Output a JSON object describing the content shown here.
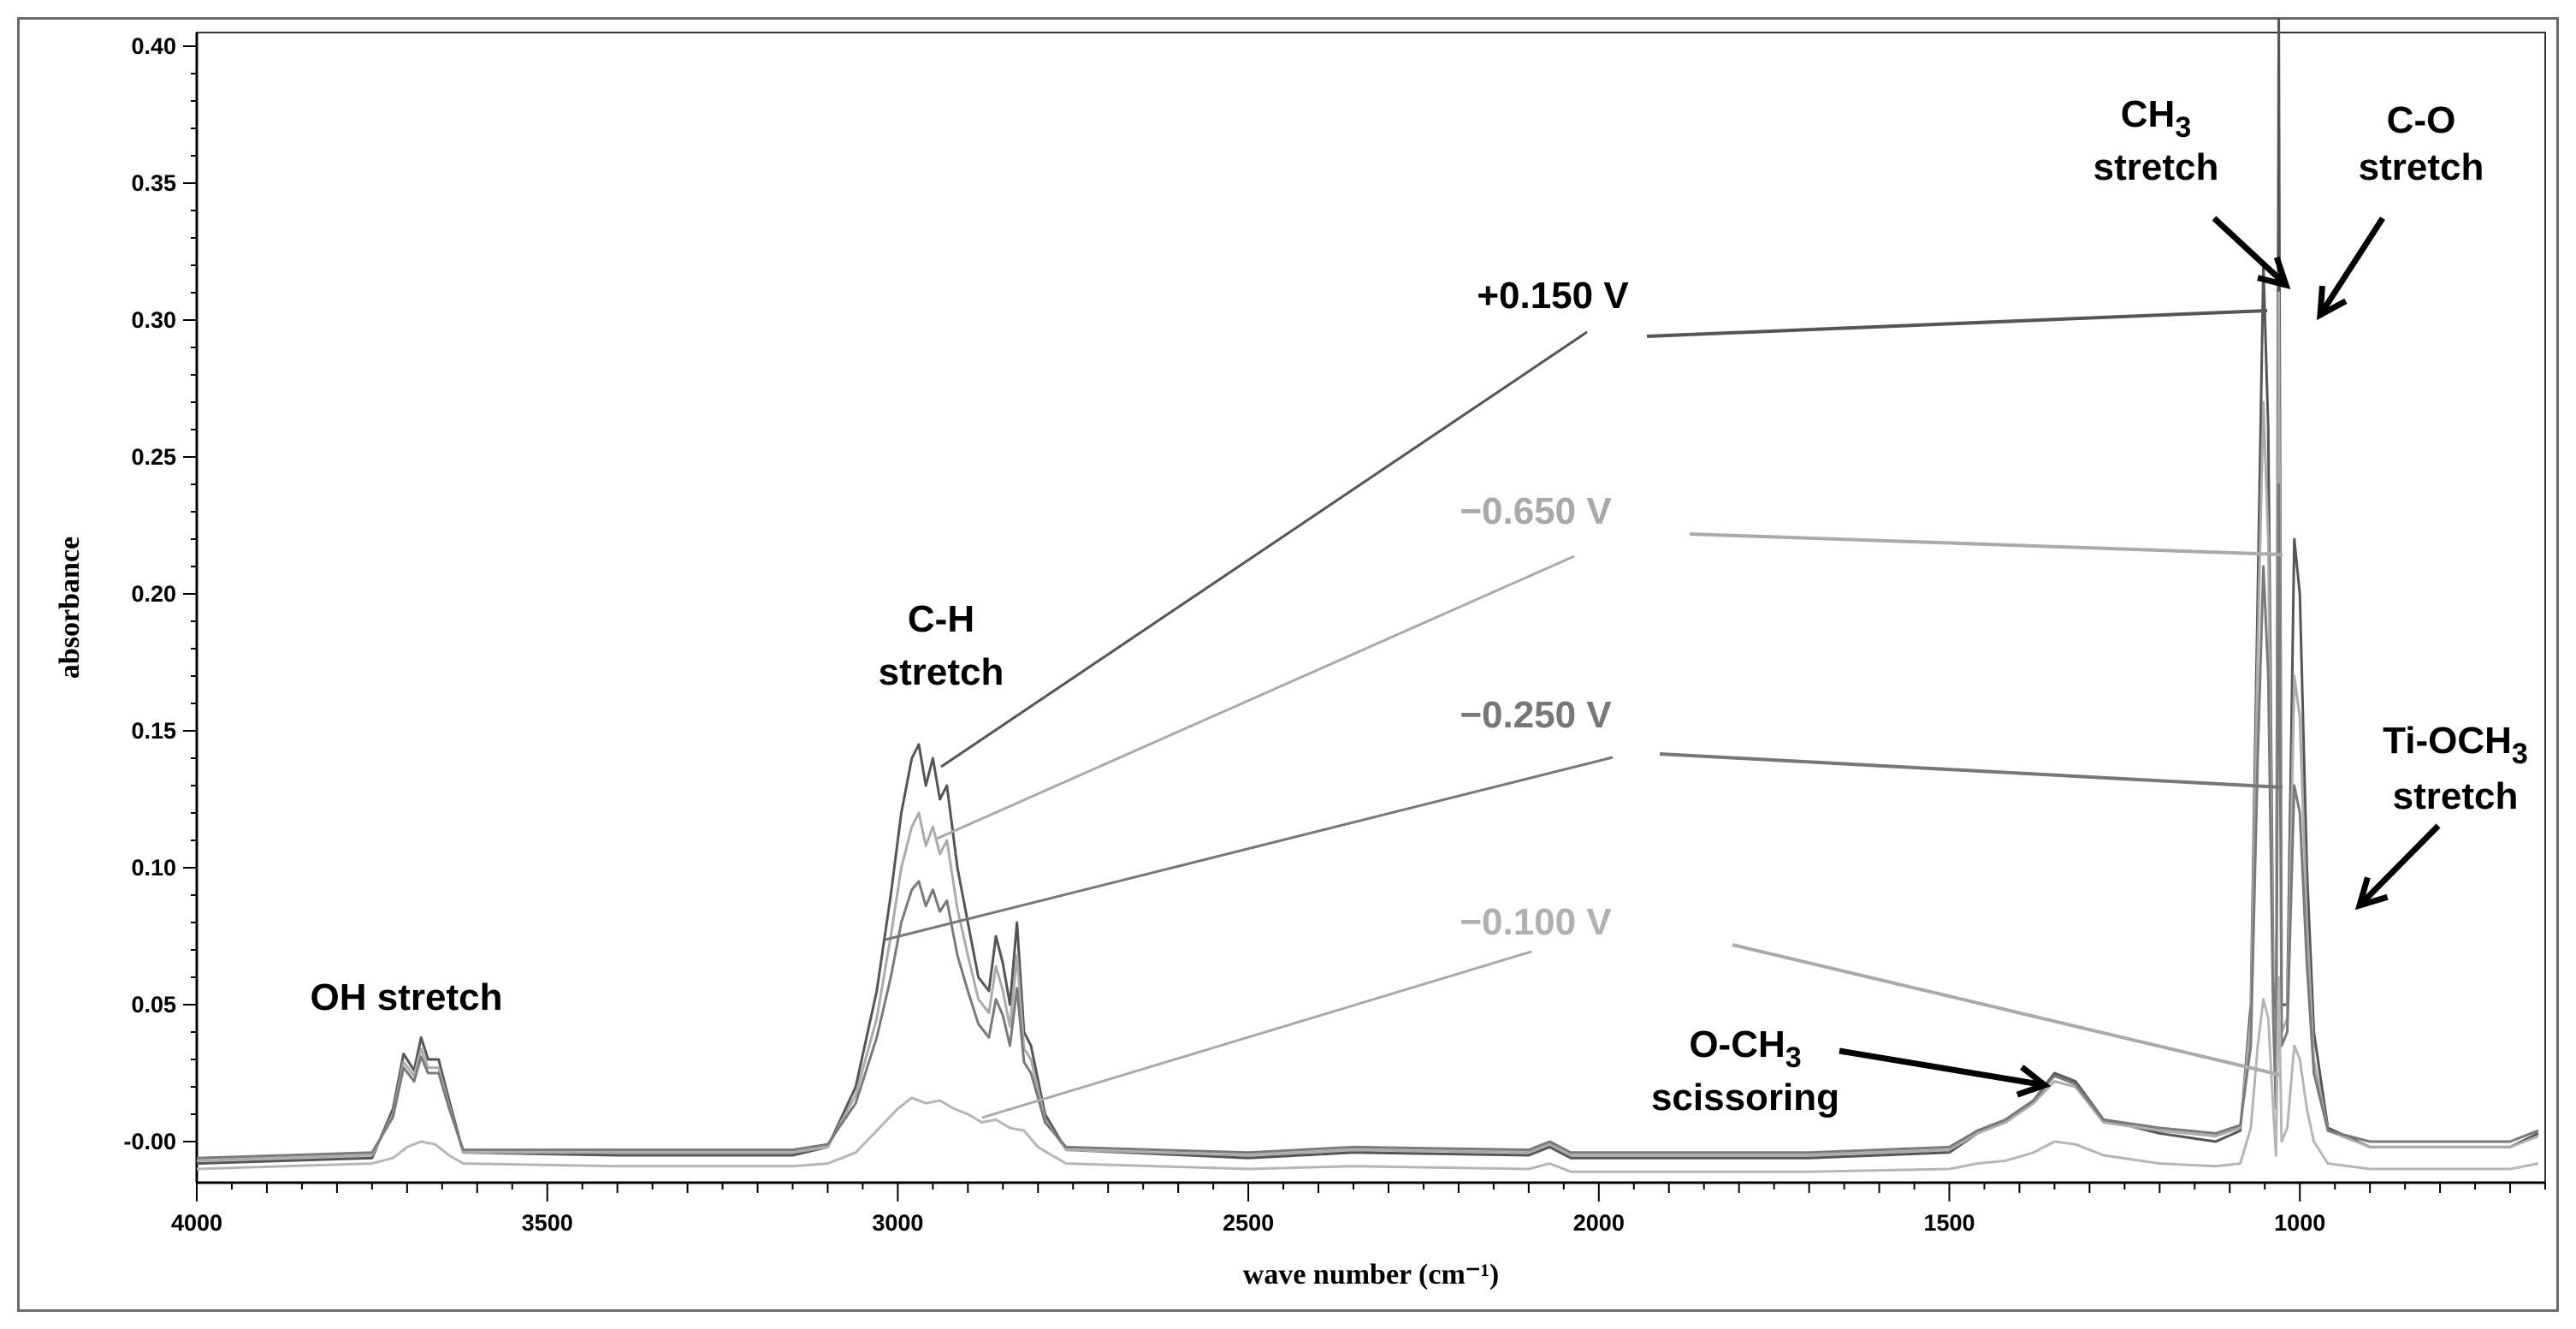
{
  "chart_data": {
    "type": "line",
    "xlabel": "wave number",
    "xlabel_unit": "(cm⁻¹)",
    "ylabel": "absorbance",
    "xlim": [
      4000,
      650
    ],
    "ylim": [
      -0.015,
      0.405
    ],
    "x_reversed": true,
    "x_ticks": [
      {
        "value": 4000,
        "label": "4000"
      },
      {
        "value": 3500,
        "label": "3500"
      },
      {
        "value": 3000,
        "label": "3000"
      },
      {
        "value": 2500,
        "label": "2500"
      },
      {
        "value": 2000,
        "label": "2000"
      },
      {
        "value": 1500,
        "label": "1500"
      },
      {
        "value": 1000,
        "label": "1000"
      }
    ],
    "y_ticks": [
      {
        "value": 0.0,
        "label": "-0.00"
      },
      {
        "value": 0.05,
        "label": "0.05"
      },
      {
        "value": 0.1,
        "label": "0.10"
      },
      {
        "value": 0.15,
        "label": "0.15"
      },
      {
        "value": 0.2,
        "label": "0.20"
      },
      {
        "value": 0.25,
        "label": "0.25"
      },
      {
        "value": 0.3,
        "label": "0.30"
      },
      {
        "value": 0.35,
        "label": "0.35"
      },
      {
        "value": 0.4,
        "label": "0.40"
      }
    ],
    "grid": false,
    "series": [
      {
        "name": "+0.150 V",
        "color": "#555555",
        "points": [
          [
            4000,
            -0.008
          ],
          [
            3750,
            -0.006
          ],
          [
            3720,
            0.012
          ],
          [
            3705,
            0.032
          ],
          [
            3690,
            0.026
          ],
          [
            3680,
            0.038
          ],
          [
            3670,
            0.03
          ],
          [
            3655,
            0.03
          ],
          [
            3640,
            0.015
          ],
          [
            3620,
            -0.004
          ],
          [
            3400,
            -0.005
          ],
          [
            3150,
            -0.005
          ],
          [
            3100,
            -0.002
          ],
          [
            3060,
            0.02
          ],
          [
            3030,
            0.055
          ],
          [
            3010,
            0.09
          ],
          [
            2995,
            0.12
          ],
          [
            2980,
            0.14
          ],
          [
            2970,
            0.145
          ],
          [
            2960,
            0.13
          ],
          [
            2950,
            0.14
          ],
          [
            2940,
            0.125
          ],
          [
            2930,
            0.13
          ],
          [
            2915,
            0.1
          ],
          [
            2900,
            0.08
          ],
          [
            2885,
            0.06
          ],
          [
            2870,
            0.055
          ],
          [
            2860,
            0.075
          ],
          [
            2850,
            0.065
          ],
          [
            2840,
            0.05
          ],
          [
            2830,
            0.08
          ],
          [
            2820,
            0.04
          ],
          [
            2810,
            0.035
          ],
          [
            2790,
            0.01
          ],
          [
            2760,
            -0.003
          ],
          [
            2500,
            -0.006
          ],
          [
            2350,
            -0.004
          ],
          [
            2100,
            -0.005
          ],
          [
            2070,
            -0.002
          ],
          [
            2040,
            -0.006
          ],
          [
            1700,
            -0.006
          ],
          [
            1500,
            -0.004
          ],
          [
            1460,
            0.003
          ],
          [
            1420,
            0.008
          ],
          [
            1380,
            0.015
          ],
          [
            1350,
            0.025
          ],
          [
            1320,
            0.022
          ],
          [
            1280,
            0.008
          ],
          [
            1200,
            0.003
          ],
          [
            1120,
            0.0
          ],
          [
            1085,
            0.004
          ],
          [
            1070,
            0.05
          ],
          [
            1060,
            0.2
          ],
          [
            1052,
            0.32
          ],
          [
            1045,
            0.26
          ],
          [
            1038,
            0.06
          ],
          [
            1034,
            0.015
          ],
          [
            1030,
            0.41
          ],
          [
            1026,
            0.05
          ],
          [
            1018,
            0.05
          ],
          [
            1008,
            0.22
          ],
          [
            1000,
            0.2
          ],
          [
            990,
            0.1
          ],
          [
            980,
            0.04
          ],
          [
            960,
            0.005
          ],
          [
            900,
            -0.002
          ],
          [
            700,
            -0.002
          ],
          [
            660,
            0.003
          ]
        ]
      },
      {
        "name": "−0.650 V",
        "color": "#ababab",
        "points": [
          [
            4000,
            -0.007
          ],
          [
            3750,
            -0.005
          ],
          [
            3720,
            0.01
          ],
          [
            3705,
            0.029
          ],
          [
            3690,
            0.024
          ],
          [
            3680,
            0.034
          ],
          [
            3670,
            0.027
          ],
          [
            3655,
            0.027
          ],
          [
            3640,
            0.013
          ],
          [
            3620,
            -0.004
          ],
          [
            3400,
            -0.004
          ],
          [
            3150,
            -0.004
          ],
          [
            3100,
            -0.002
          ],
          [
            3060,
            0.017
          ],
          [
            3030,
            0.045
          ],
          [
            3010,
            0.075
          ],
          [
            2995,
            0.1
          ],
          [
            2980,
            0.115
          ],
          [
            2970,
            0.12
          ],
          [
            2960,
            0.108
          ],
          [
            2950,
            0.115
          ],
          [
            2940,
            0.105
          ],
          [
            2930,
            0.11
          ],
          [
            2915,
            0.085
          ],
          [
            2900,
            0.068
          ],
          [
            2885,
            0.052
          ],
          [
            2870,
            0.047
          ],
          [
            2860,
            0.064
          ],
          [
            2850,
            0.055
          ],
          [
            2840,
            0.042
          ],
          [
            2830,
            0.068
          ],
          [
            2820,
            0.034
          ],
          [
            2810,
            0.03
          ],
          [
            2790,
            0.008
          ],
          [
            2760,
            -0.003
          ],
          [
            2500,
            -0.005
          ],
          [
            2350,
            -0.003
          ],
          [
            2100,
            -0.004
          ],
          [
            2070,
            -0.001
          ],
          [
            2040,
            -0.005
          ],
          [
            1700,
            -0.005
          ],
          [
            1500,
            -0.003
          ],
          [
            1460,
            0.003
          ],
          [
            1420,
            0.007
          ],
          [
            1380,
            0.014
          ],
          [
            1350,
            0.022
          ],
          [
            1320,
            0.02
          ],
          [
            1280,
            0.007
          ],
          [
            1200,
            0.004
          ],
          [
            1120,
            0.002
          ],
          [
            1085,
            0.005
          ],
          [
            1070,
            0.045
          ],
          [
            1060,
            0.18
          ],
          [
            1052,
            0.27
          ],
          [
            1045,
            0.22
          ],
          [
            1038,
            0.05
          ],
          [
            1034,
            0.015
          ],
          [
            1030,
            0.31
          ],
          [
            1026,
            0.04
          ],
          [
            1018,
            0.045
          ],
          [
            1008,
            0.17
          ],
          [
            1000,
            0.155
          ],
          [
            990,
            0.08
          ],
          [
            980,
            0.03
          ],
          [
            960,
            0.004
          ],
          [
            900,
            -0.002
          ],
          [
            700,
            -0.002
          ],
          [
            660,
            0.002
          ]
        ]
      },
      {
        "name": "−0.250 V",
        "color": "#7a7a7a",
        "points": [
          [
            4000,
            -0.006
          ],
          [
            3750,
            -0.004
          ],
          [
            3720,
            0.009
          ],
          [
            3705,
            0.027
          ],
          [
            3690,
            0.022
          ],
          [
            3680,
            0.031
          ],
          [
            3670,
            0.025
          ],
          [
            3655,
            0.025
          ],
          [
            3640,
            0.012
          ],
          [
            3620,
            -0.003
          ],
          [
            3400,
            -0.003
          ],
          [
            3150,
            -0.003
          ],
          [
            3100,
            -0.001
          ],
          [
            3060,
            0.014
          ],
          [
            3030,
            0.038
          ],
          [
            3010,
            0.06
          ],
          [
            2995,
            0.08
          ],
          [
            2980,
            0.092
          ],
          [
            2970,
            0.095
          ],
          [
            2960,
            0.086
          ],
          [
            2950,
            0.092
          ],
          [
            2940,
            0.084
          ],
          [
            2930,
            0.088
          ],
          [
            2915,
            0.068
          ],
          [
            2900,
            0.055
          ],
          [
            2885,
            0.043
          ],
          [
            2870,
            0.038
          ],
          [
            2860,
            0.052
          ],
          [
            2850,
            0.046
          ],
          [
            2840,
            0.035
          ],
          [
            2830,
            0.056
          ],
          [
            2820,
            0.029
          ],
          [
            2810,
            0.025
          ],
          [
            2790,
            0.007
          ],
          [
            2760,
            -0.002
          ],
          [
            2500,
            -0.004
          ],
          [
            2350,
            -0.002
          ],
          [
            2100,
            -0.003
          ],
          [
            2070,
            0.0
          ],
          [
            2040,
            -0.004
          ],
          [
            1700,
            -0.004
          ],
          [
            1500,
            -0.002
          ],
          [
            1460,
            0.004
          ],
          [
            1420,
            0.008
          ],
          [
            1380,
            0.015
          ],
          [
            1350,
            0.024
          ],
          [
            1320,
            0.021
          ],
          [
            1280,
            0.008
          ],
          [
            1200,
            0.005
          ],
          [
            1120,
            0.003
          ],
          [
            1085,
            0.006
          ],
          [
            1070,
            0.035
          ],
          [
            1060,
            0.14
          ],
          [
            1052,
            0.21
          ],
          [
            1045,
            0.17
          ],
          [
            1038,
            0.045
          ],
          [
            1034,
            0.012
          ],
          [
            1030,
            0.24
          ],
          [
            1026,
            0.035
          ],
          [
            1018,
            0.04
          ],
          [
            1008,
            0.13
          ],
          [
            1000,
            0.12
          ],
          [
            990,
            0.065
          ],
          [
            980,
            0.025
          ],
          [
            960,
            0.004
          ],
          [
            900,
            0.0
          ],
          [
            700,
            0.0
          ],
          [
            660,
            0.004
          ]
        ]
      },
      {
        "name": "−0.100 V",
        "color": "#b6b6b6",
        "points": [
          [
            4000,
            -0.01
          ],
          [
            3750,
            -0.008
          ],
          [
            3720,
            -0.006
          ],
          [
            3700,
            -0.002
          ],
          [
            3680,
            0.0
          ],
          [
            3660,
            -0.001
          ],
          [
            3640,
            -0.005
          ],
          [
            3620,
            -0.008
          ],
          [
            3400,
            -0.009
          ],
          [
            3150,
            -0.009
          ],
          [
            3100,
            -0.008
          ],
          [
            3060,
            -0.004
          ],
          [
            3030,
            0.004
          ],
          [
            3000,
            0.012
          ],
          [
            2980,
            0.016
          ],
          [
            2960,
            0.014
          ],
          [
            2940,
            0.015
          ],
          [
            2920,
            0.012
          ],
          [
            2900,
            0.01
          ],
          [
            2880,
            0.007
          ],
          [
            2860,
            0.008
          ],
          [
            2840,
            0.005
          ],
          [
            2820,
            0.004
          ],
          [
            2800,
            -0.002
          ],
          [
            2760,
            -0.008
          ],
          [
            2500,
            -0.01
          ],
          [
            2350,
            -0.009
          ],
          [
            2100,
            -0.01
          ],
          [
            2070,
            -0.008
          ],
          [
            2040,
            -0.011
          ],
          [
            1700,
            -0.011
          ],
          [
            1500,
            -0.01
          ],
          [
            1460,
            -0.008
          ],
          [
            1420,
            -0.007
          ],
          [
            1380,
            -0.004
          ],
          [
            1350,
            0.0
          ],
          [
            1320,
            -0.001
          ],
          [
            1280,
            -0.005
          ],
          [
            1200,
            -0.008
          ],
          [
            1120,
            -0.009
          ],
          [
            1085,
            -0.008
          ],
          [
            1070,
            0.005
          ],
          [
            1060,
            0.035
          ],
          [
            1052,
            0.052
          ],
          [
            1045,
            0.045
          ],
          [
            1038,
            0.012
          ],
          [
            1034,
            -0.005
          ],
          [
            1030,
            0.06
          ],
          [
            1026,
            0.0
          ],
          [
            1018,
            0.005
          ],
          [
            1008,
            0.035
          ],
          [
            1000,
            0.03
          ],
          [
            990,
            0.012
          ],
          [
            980,
            0.0
          ],
          [
            960,
            -0.008
          ],
          [
            900,
            -0.01
          ],
          [
            700,
            -0.01
          ],
          [
            660,
            -0.008
          ]
        ]
      }
    ],
    "annotations": [
      {
        "id": "oh",
        "lines": [
          "OH stretch"
        ]
      },
      {
        "id": "ch",
        "lines": [
          "C-H",
          "stretch"
        ]
      },
      {
        "id": "ch3",
        "lines": [
          "CH3",
          "stretch"
        ]
      },
      {
        "id": "co",
        "lines": [
          "C-O",
          "stretch"
        ]
      },
      {
        "id": "tioch3",
        "lines": [
          "Ti-OCH3",
          "stretch"
        ]
      },
      {
        "id": "och3",
        "lines": [
          "O-CH3",
          "scissoring"
        ]
      }
    ],
    "voltage_labels": [
      {
        "text": "+0.150 V",
        "color": "#000000"
      },
      {
        "text": "−0.650 V",
        "color": "#a9a9a9"
      },
      {
        "text": "−0.250 V",
        "color": "#777777"
      },
      {
        "text": "−0.100 V",
        "color": "#b0b0b0"
      }
    ]
  }
}
